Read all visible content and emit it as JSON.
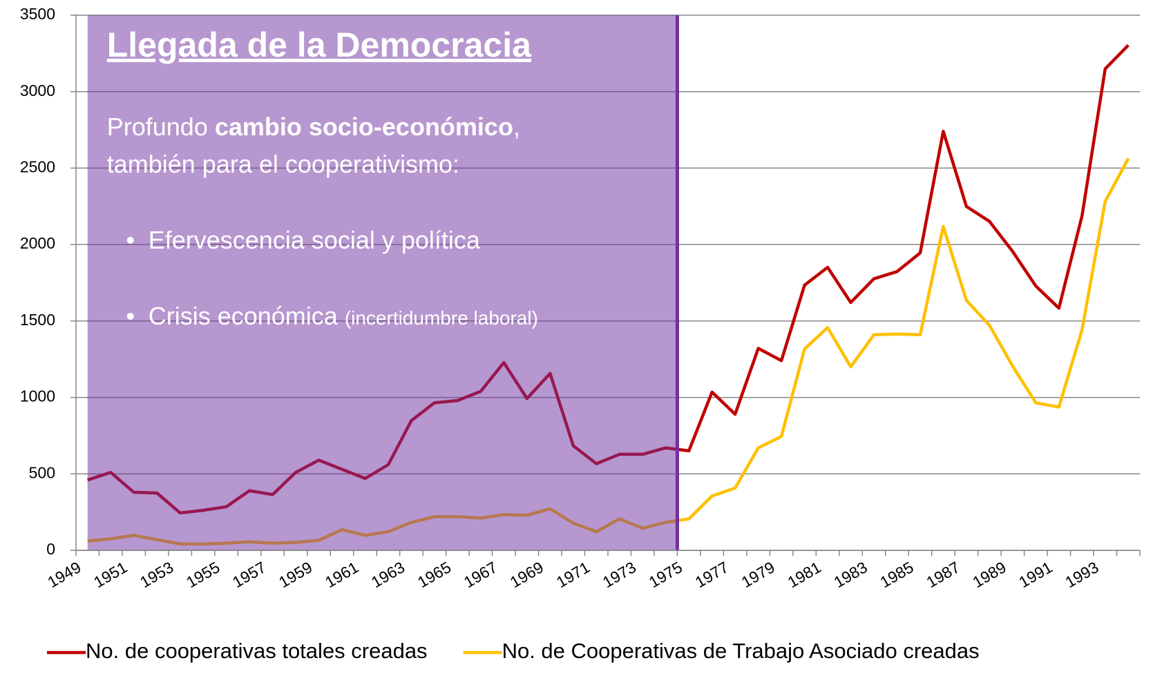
{
  "chart_data": {
    "type": "line",
    "categories": [
      "1949",
      null,
      "1951",
      null,
      "1953",
      null,
      "1955",
      null,
      "1957",
      null,
      "1959",
      null,
      "1961",
      null,
      "1963",
      null,
      "1965",
      null,
      "1967",
      null,
      "1969",
      null,
      "1971",
      null,
      "1973",
      null,
      "1975",
      null,
      "1977",
      null,
      "1979",
      null,
      "1981",
      null,
      "1983",
      null,
      "1985",
      null,
      "1987",
      null,
      "1989",
      null,
      "1991",
      null,
      "1993",
      null
    ],
    "series": [
      {
        "name": "No. de cooperativas totales creadas",
        "color": "#c00000",
        "values": [
          460,
          510,
          380,
          375,
          245,
          262,
          285,
          390,
          365,
          510,
          590,
          530,
          470,
          560,
          848,
          965,
          980,
          1040,
          1228,
          993,
          1157,
          684,
          567,
          628,
          628,
          670,
          651,
          1035,
          890,
          1321,
          1241,
          1734,
          1851,
          1621,
          1776,
          1823,
          1945,
          2741,
          2249,
          2151,
          1954,
          1729,
          1584,
          2188,
          3149,
          3304
        ]
      },
      {
        "name": "No. de Cooperativas de Trabajo Asociado creadas",
        "color": "#ffc000",
        "values": [
          61,
          75,
          98,
          70,
          42,
          42,
          47,
          56,
          47,
          52,
          66,
          136,
          98,
          122,
          183,
          220,
          220,
          211,
          234,
          230,
          272,
          178,
          122,
          206,
          145,
          183,
          206,
          356,
          408,
          670,
          745,
          1317,
          1457,
          1200,
          1410,
          1415,
          1410,
          2118,
          1635,
          1471,
          1204,
          965,
          937,
          1443,
          2282,
          2563
        ]
      }
    ],
    "ylim": [
      0,
      3500
    ],
    "yticks": [
      0,
      500,
      1000,
      1500,
      2000,
      2500,
      3000,
      3500
    ],
    "grid": true,
    "legend": "bottom",
    "annotation": {
      "title": "Llegada de la Democracia",
      "text_start": "Profundo ",
      "text_bold": "cambio socio-económico",
      "text_end": ",",
      "text_line2": "también para el cooperativismo:",
      "bullets": [
        {
          "text": "Efervescencia social y política"
        },
        {
          "text": "Crisis económica",
          "note": "(incertidumbre laboral)"
        }
      ]
    }
  }
}
